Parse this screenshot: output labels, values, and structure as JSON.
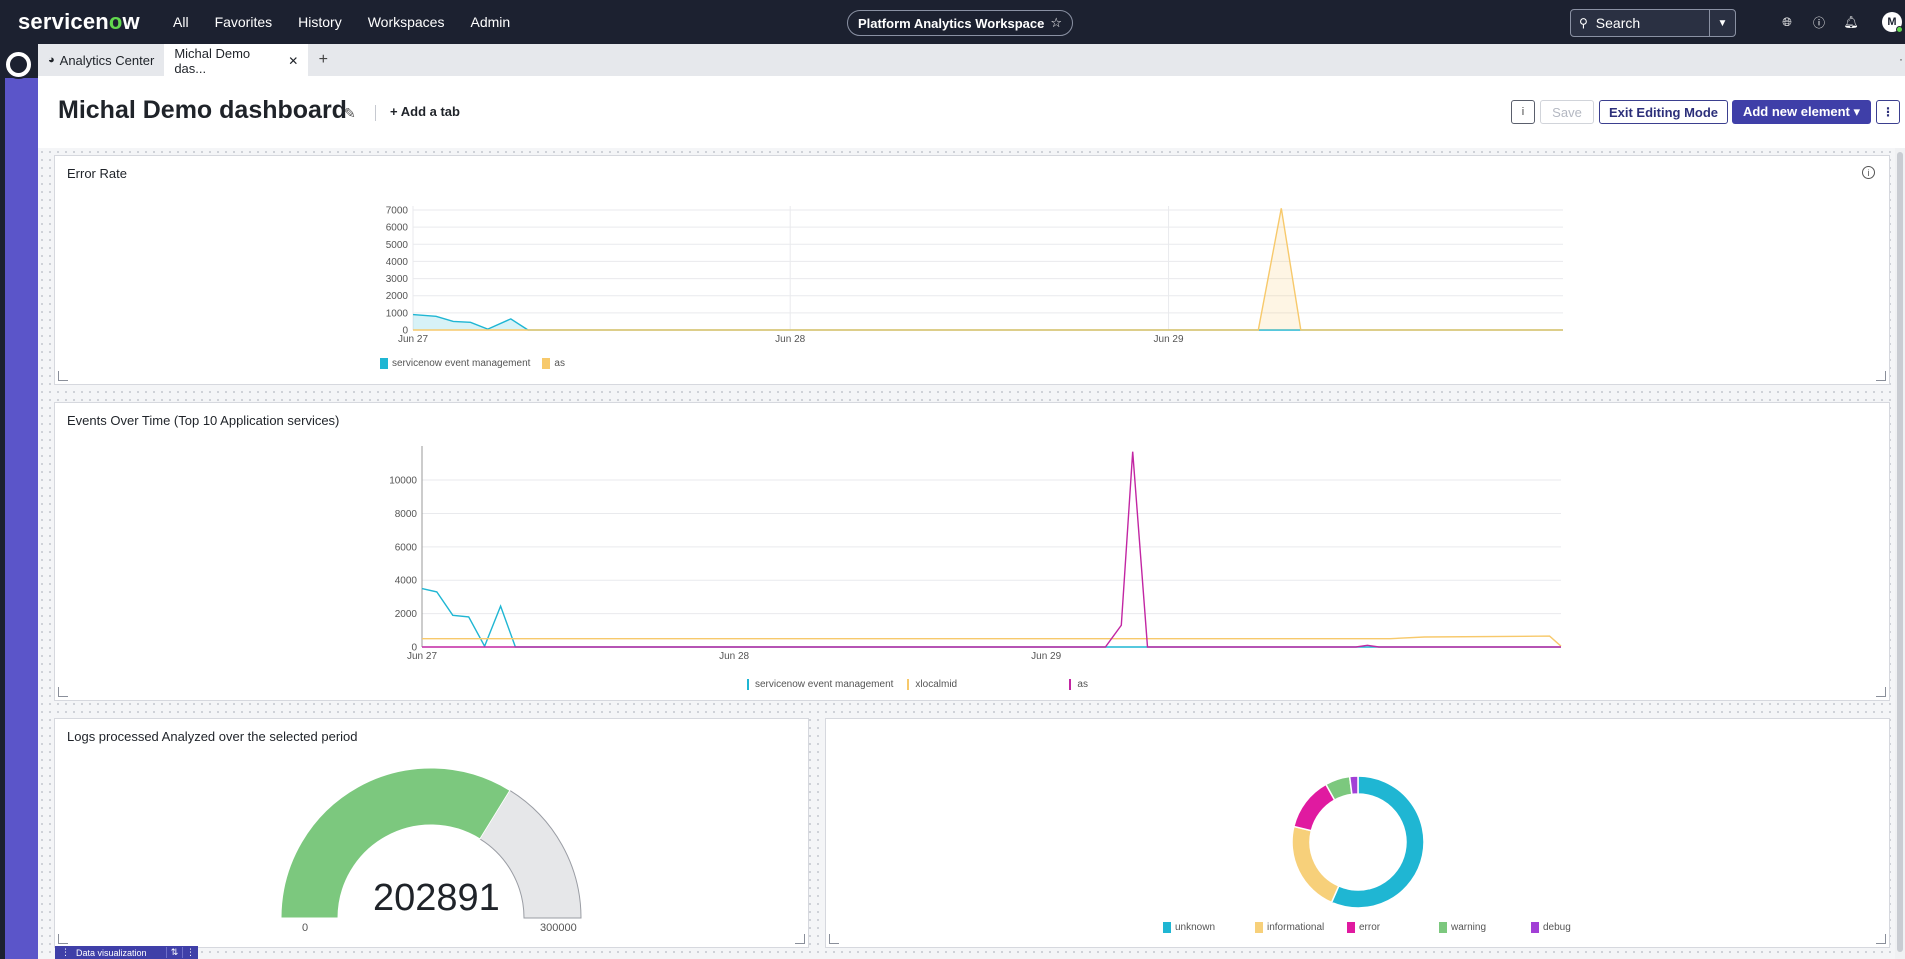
{
  "brand": {
    "name_prefix": "servicen",
    "name_o": "o",
    "name_suffix": "w"
  },
  "nav": {
    "items": [
      "All",
      "Favorites",
      "History",
      "Workspaces",
      "Admin"
    ]
  },
  "workspace": {
    "label": "Platform Analytics Workspace",
    "star": "☆"
  },
  "search": {
    "placeholder": "Search"
  },
  "user": {
    "initial": "M"
  },
  "tabs": [
    {
      "label": "Analytics Center",
      "icon": "dashboard-gauge-icon"
    },
    {
      "label": "Michal Demo das...",
      "icon": ""
    }
  ],
  "page": {
    "title": "Michal Demo dashboard",
    "add_tab": "Add a tab",
    "save": "Save",
    "exit_editing": "Exit Editing Mode",
    "add_new": "Add new element ▾"
  },
  "error_rate": {
    "title": "Error Rate",
    "chart_data": {
      "type": "area",
      "x_ticks": [
        "Jun 27",
        "Jun 28",
        "Jun 29"
      ],
      "y_ticks": [
        0,
        1000,
        2000,
        3000,
        4000,
        5000,
        6000,
        7000
      ],
      "ylim": [
        0,
        7000
      ],
      "series": [
        {
          "name": "servicenow event management",
          "color": "#1fb6d3",
          "points": [
            [
              0.0,
              900
            ],
            [
              0.01,
              850
            ],
            [
              0.02,
              800
            ],
            [
              0.035,
              500
            ],
            [
              0.05,
              450
            ],
            [
              0.065,
              50
            ],
            [
              0.085,
              650
            ],
            [
              0.1,
              0
            ],
            [
              1.0,
              0
            ]
          ]
        },
        {
          "name": "as",
          "color": "#f7c96b",
          "points": [
            [
              0.0,
              0
            ],
            [
              0.735,
              0
            ],
            [
              0.755,
              7100
            ],
            [
              0.772,
              0
            ],
            [
              1.0,
              0
            ]
          ]
        }
      ]
    }
  },
  "events_over_time": {
    "title": "Events Over Time (Top 10 Application services)",
    "chart_data": {
      "type": "line",
      "x_ticks": [
        "Jun 27",
        "Jun 28",
        "Jun 29"
      ],
      "y_ticks": [
        0,
        2000,
        4000,
        6000,
        8000,
        10000
      ],
      "ylim": [
        0,
        11800
      ],
      "series": [
        {
          "name": "servicenow event management",
          "color": "#1fb6d3",
          "points": [
            [
              0.0,
              3500
            ],
            [
              0.013,
              3300
            ],
            [
              0.027,
              1900
            ],
            [
              0.041,
              1800
            ],
            [
              0.055,
              50
            ],
            [
              0.069,
              2450
            ],
            [
              0.082,
              0
            ],
            [
              1.0,
              0
            ]
          ]
        },
        {
          "name": "xlocalmid",
          "color": "#f7c96b",
          "points": [
            [
              0.0,
              500
            ],
            [
              0.85,
              500
            ],
            [
              0.88,
              600
            ],
            [
              0.99,
              650
            ],
            [
              1.0,
              50
            ]
          ]
        },
        {
          "name": "as",
          "color": "#c226a3",
          "points": [
            [
              0.0,
              0
            ],
            [
              0.6,
              0
            ],
            [
              0.614,
              1300
            ],
            [
              0.624,
              11700
            ],
            [
              0.637,
              0
            ],
            [
              0.82,
              0
            ],
            [
              0.83,
              100
            ],
            [
              0.84,
              0
            ],
            [
              1.0,
              0
            ]
          ]
        }
      ]
    }
  },
  "logs": {
    "title": "Logs processed Analyzed over the selected period",
    "chart_data": {
      "type": "gauge",
      "value": 202891,
      "min": 0,
      "max": 300000,
      "value_color": "#7cc87e",
      "track_color": "#e6e7e9"
    },
    "value_label": "202891",
    "min_label": "0",
    "max_label": "300000"
  },
  "severity": {
    "chart_data": {
      "type": "pie",
      "series": [
        {
          "name": "unknown",
          "value": 56,
          "color": "#1fb6d3"
        },
        {
          "name": "informational",
          "value": 22,
          "color": "#f7d07a"
        },
        {
          "name": "error",
          "value": 13,
          "color": "#e01aa0"
        },
        {
          "name": "warning",
          "value": 6,
          "color": "#7cc87e"
        },
        {
          "name": "debug",
          "value": 2,
          "color": "#a23fd6"
        }
      ]
    }
  },
  "datavis": {
    "label": "Data visualization"
  }
}
